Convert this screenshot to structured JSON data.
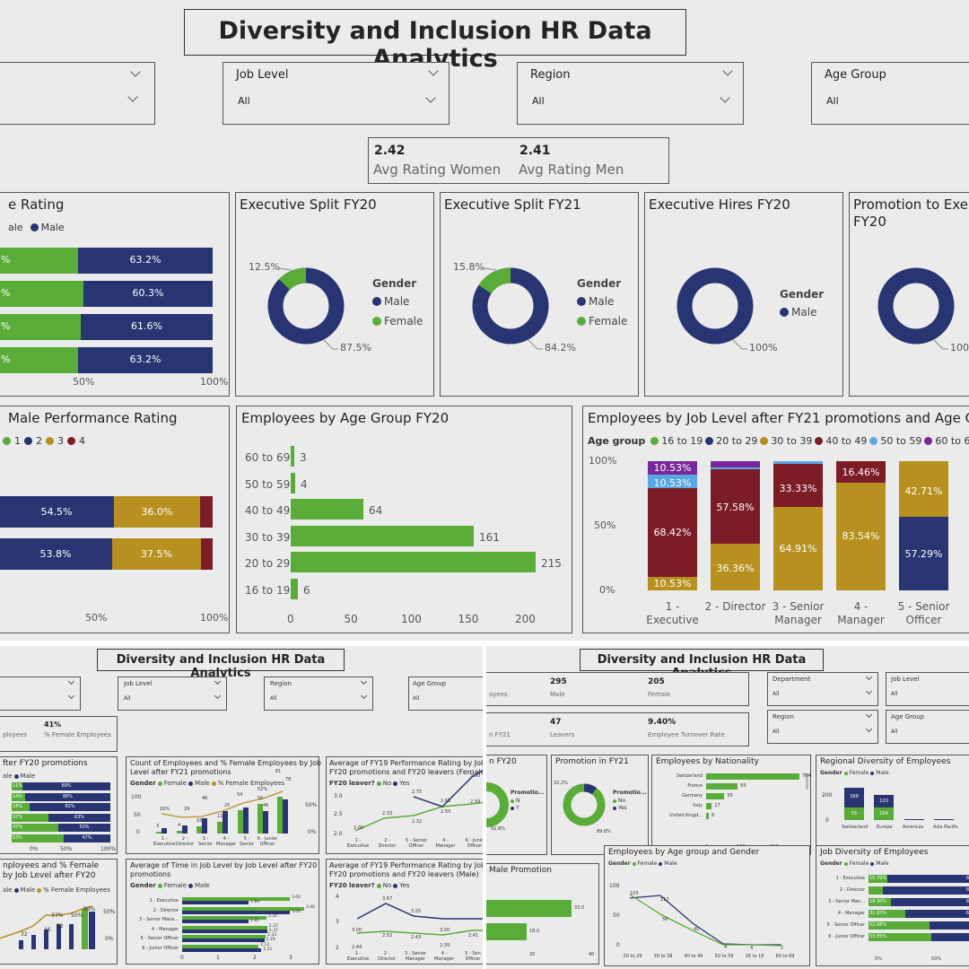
{
  "colors": {
    "green": "#5aac39",
    "navy": "#283572",
    "gold": "#b8901f",
    "maroon": "#7b1c27",
    "lightblue": "#5aa7e3",
    "purple": "#7a279a",
    "bg": "#ebebeb"
  },
  "top": {
    "title": "Diversity and Inclusion HR Data Analytics",
    "slicers": [
      {
        "label": "",
        "value": ""
      },
      {
        "label": "Job Level",
        "value": "All"
      },
      {
        "label": "Region",
        "value": "All"
      },
      {
        "label": "Age Group",
        "value": "All"
      }
    ],
    "kpi": {
      "women_value": "2.42",
      "women_label": "Avg Rating Women",
      "men_value": "2.41",
      "men_label": "Avg Rating Men"
    },
    "rating_title": "e Rating",
    "rating_legend": [
      "ale",
      "Male"
    ],
    "rating_rows": [
      {
        "g": "%",
        "m": "63.2%",
        "gf": 0.368
      },
      {
        "g": "%",
        "m": "60.3%",
        "gf": 0.397
      },
      {
        "g": "%",
        "m": "61.6%",
        "gf": 0.384
      },
      {
        "g": "%",
        "m": "63.2%",
        "gf": 0.368
      }
    ],
    "rating_axis": [
      "50%",
      "100%"
    ],
    "donuts": [
      {
        "title": "Executive Split FY20",
        "small": "12.5%",
        "big": "87.5%",
        "female": 0.125,
        "legend_title": "Gender",
        "legend": [
          "Male",
          "Female"
        ]
      },
      {
        "title": "Executive Split FY21",
        "small": "15.8%",
        "big": "84.2%",
        "female": 0.158,
        "legend_title": "Gender",
        "legend": [
          "Male",
          "Female"
        ]
      },
      {
        "title": "Executive Hires FY20",
        "small": "",
        "big": "100%",
        "female": 0,
        "legend_title": "Gender",
        "legend": [
          "Male"
        ]
      },
      {
        "title": "Promotion to Exe",
        "title2": "FY20",
        "small": "",
        "big": "100%",
        "female": 0,
        "legend_title": "",
        "legend": []
      }
    ],
    "perf_title": "Male Performance Rating",
    "perf_legend": [
      "1",
      "2",
      "3",
      "4"
    ],
    "perf_rows": [
      {
        "v2": "54.5%",
        "v3": "36.0%"
      },
      {
        "v2": "53.8%",
        "v3": "37.5%"
      }
    ],
    "perf_axis": [
      "50%",
      "100%"
    ],
    "age_title": "Employees by Age Group FY20",
    "joblvl_title": "Employees by Job Level after FY21 promotions and Age G",
    "joblvl_legend_title": "Age group",
    "joblvl_legend": [
      "16 to 19",
      "20 to 29",
      "30 to 39",
      "40 to 49",
      "50 to 59",
      "60 to 69"
    ],
    "joblvl_yaxis": [
      "100%",
      "50%",
      "0%"
    ],
    "joblvl_cats": [
      [
        "1 -",
        "Executive"
      ],
      [
        "2 - Director",
        ""
      ],
      [
        "3 - Senior",
        "Manager"
      ],
      [
        "4 -",
        "Manager"
      ],
      [
        "5 - Senior",
        "Officer"
      ]
    ]
  },
  "chart_data": [
    {
      "type": "bar",
      "title": "Employees by Age Group FY20",
      "categories": [
        "60 to 69",
        "50 to 59",
        "40 to 49",
        "30 to 39",
        "20 to 29",
        "16 to 19"
      ],
      "values": [
        3,
        4,
        64,
        161,
        215,
        6
      ],
      "xlim": [
        0,
        215
      ],
      "xticks": [
        "0",
        "50",
        "100",
        "150",
        "200"
      ]
    },
    {
      "type": "bar",
      "title": "Employees by Job Level after FY21 promotions and Age G",
      "categories": [
        "1 - Executive",
        "2 - Director",
        "3 - Senior Manager",
        "4 - Manager",
        "5 - Senior Officer"
      ],
      "series": [
        {
          "name": "16 to 19",
          "values": [
            0,
            0,
            0,
            0,
            0
          ]
        },
        {
          "name": "20 to 29",
          "values": [
            0,
            0,
            0,
            0,
            57.29
          ]
        },
        {
          "name": "30 to 39",
          "values": [
            10.53,
            36.36,
            64.91,
            83.54,
            42.71
          ]
        },
        {
          "name": "40 to 49",
          "values": [
            68.42,
            57.58,
            33.33,
            16.46,
            0
          ]
        },
        {
          "name": "50 to 59",
          "values": [
            10.53,
            1.5,
            1.76,
            0,
            0
          ]
        },
        {
          "name": "60 to 69",
          "values": [
            10.53,
            4.56,
            0,
            0,
            0
          ]
        }
      ],
      "labels": [
        [
          "10.53%",
          "68.42%",
          "10.53%",
          "10.53%"
        ],
        [
          "36.36%",
          "57.58%"
        ],
        [
          "64.91%",
          "33.33%"
        ],
        [
          "83.54%",
          "16.46%"
        ],
        [
          "57.29%",
          "42.71%"
        ]
      ],
      "ylim": [
        0,
        100
      ]
    }
  ],
  "bl": {
    "title": "Diversity and Inclusion HR Data Analytics",
    "slicers": [
      {
        "label": "",
        "value": ""
      },
      {
        "label": "Job Level",
        "value": "All"
      },
      {
        "label": "Region",
        "value": "All"
      },
      {
        "label": "Age Group",
        "value": "All"
      }
    ],
    "card_value": "41%",
    "card_left": "ployees",
    "card_label": "% Female Employees",
    "card2_title": "fter FY20 promotions",
    "card2_legend": [
      "ale",
      "Male"
    ],
    "card2_rows": [
      [
        "11%",
        "89%"
      ],
      [
        "14%",
        "86%"
      ],
      [
        "18%",
        "82%"
      ],
      [
        "37%",
        "63%"
      ],
      [
        "47%",
        "53%"
      ],
      [
        "53%",
        "47%"
      ]
    ],
    "card2_axis": [
      "0%",
      "50%",
      "100%"
    ],
    "card3_title": "nployees and % Female",
    "card3_title2": "by Job Level after FY20",
    "card3_legend": [
      "ale",
      "Male",
      "% Female Employees"
    ],
    "card3_vals": [
      "32",
      "46",
      "52",
      "37%",
      "50%",
      "59%"
    ],
    "card4_title": "Count of Employees and % Female Employees by Job",
    "card4_title2": "Level after FY21 promotions",
    "card4_legend_title": "Gender",
    "card4_legend": [
      "Female",
      "Male",
      "% Female Employees"
    ],
    "card4_labels": [
      "3",
      "4",
      "16",
      "29",
      "11",
      "46",
      "25",
      "54",
      "50",
      "46",
      "81",
      "78",
      "16%",
      "52%",
      "38%"
    ],
    "card4_cats": [
      "1 -",
      "2 -",
      "3 -",
      "4 -",
      "5 -",
      "6 - Junior"
    ],
    "card4_cats2": [
      "Executive",
      "Director",
      "Senior",
      "Manager",
      "Senior",
      "Officer"
    ],
    "card4_y": [
      "100",
      "50",
      "0"
    ],
    "card4_y2": [
      "50%",
      "0%"
    ],
    "card5_title": "Average of FY19 Performance Rating by Job Le",
    "card5_title2": "FY20 promotions and FY20 leavers (Female)",
    "card5_legend_title": "FY20 leaver?",
    "card5_legend": [
      "No",
      "Yes"
    ],
    "card5_labels": [
      "2.75",
      "2.65",
      "2.50",
      "2.33",
      "2.32",
      "2.00",
      "3.00",
      "2.59"
    ],
    "card5_y": [
      "3.0",
      "2.5",
      "2.0"
    ],
    "card5_cats": [
      "1 -",
      "2 -",
      "5 - Senior",
      "4 -",
      "6 - Junio"
    ],
    "card5_cats2": [
      "Executive",
      "Director",
      "Officer",
      "Manager",
      "Officer"
    ],
    "card6_title": "Average of Time in Job Level by Job Level after FY20",
    "card6_title2": "promotions",
    "card6_legend_title": "Gender",
    "card6_legend": [
      "Female",
      "Male"
    ],
    "card6_rows": [
      {
        "c": "1 - Executive",
        "f": "3.00",
        "m": "1.86"
      },
      {
        "c": "2 - Director",
        "f": "3.40",
        "m": "3.00"
      },
      {
        "c": "3 - Senior Mana...",
        "f": "2.35",
        "m": "1.85"
      },
      {
        "c": "4 - Manager",
        "f": "2.37",
        "m": "2.37"
      },
      {
        "c": "5 - Senior Officer",
        "f": "2.33",
        "m": "2.29"
      },
      {
        "c": "6 - Junior Officer",
        "f": "2.13",
        "m": "2.21"
      }
    ],
    "card6_axis": [
      "0",
      "1",
      "2",
      "3"
    ],
    "card7_title": "Average of FY19 Performance Rating by Job Level after",
    "card7_title2": "FY20 promotions and FY20 leavers (Male)",
    "card7_legend_title": "FY20 leaver?",
    "card7_legend": [
      "No",
      "Yes"
    ],
    "card7_labels": [
      "3.67",
      "3.25",
      "3.00",
      "3.00",
      "2.52",
      "2.43",
      "2.41",
      "2.44",
      "2.39"
    ],
    "card7_y": [
      "4",
      "3",
      "2"
    ],
    "card7_cats": [
      "1 -",
      "2 -",
      "3 - Senior",
      "4 -",
      "5 - Sen"
    ],
    "card7_cats2": [
      "Executive",
      "Director",
      "Manager",
      "Manager",
      "Officer"
    ]
  },
  "br": {
    "title": "Diversity and Inclusion HR Data Analytics",
    "k1_left": "oyees",
    "k1_v1": "295",
    "k1_l1": "Male",
    "k1_v2": "205",
    "k1_l2": "Female",
    "k2_left": "n FY21",
    "k2_v1": "47",
    "k2_l1": "Leavers",
    "k2_v2": "9.40%",
    "k2_l2": "Employee Turnover Rate",
    "slicers": [
      {
        "label": "Department",
        "value": "All"
      },
      {
        "label": "Job Level",
        "value": "All"
      },
      {
        "label": "Region",
        "value": "All"
      },
      {
        "label": "Age Group",
        "value": "All"
      }
    ],
    "d1_title": "n FY20",
    "d1_legend_title": "Promotio...",
    "d1_legend": [
      "N",
      "Y"
    ],
    "d1_big": "92.8%",
    "d2_title": "Promotion in FY21",
    "d2_small": "10.2%",
    "d2_big": "89.8%",
    "d2_legend_title": "Promotio...",
    "d2_legend": [
      "No",
      "Yes"
    ],
    "nat_title": "Employees by Nationality",
    "nat_rows": [
      {
        "c": "Switzerland",
        "v": "764"
      },
      {
        "c": "France",
        "v": "95"
      },
      {
        "c": "Germany",
        "v": "55"
      },
      {
        "c": "Italy",
        "v": "17"
      },
      {
        "c": "United Kingd...",
        "v": "8"
      }
    ],
    "nat_axis": [
      "0",
      "100",
      "200"
    ],
    "reg_title": "Regional Diversity of Employees",
    "reg_legend_title": "Gender",
    "reg_legend": [
      "Female",
      "Male"
    ],
    "reg_y": [
      "200",
      "0"
    ],
    "reg_labels": [
      "169",
      "120",
      "55",
      "104"
    ],
    "reg_cats": [
      "Switzerland",
      "Europe",
      "Americas",
      "Asia Pacific"
    ],
    "mp_title": "Male Promotion",
    "mp_vals": [
      "33.0",
      "18.0"
    ],
    "mp_axis": [
      "20",
      "40"
    ],
    "ag_title": "Employees by Age group and Gender",
    "ag_legend_title": "Gender",
    "ag_legend": [
      "Female",
      "Male"
    ],
    "ag_labels": [
      "103",
      "117",
      "58",
      "40",
      "4",
      "4",
      "2"
    ],
    "ag_y": [
      "100",
      "50",
      "0"
    ],
    "ag_cats": [
      "20 to 29",
      "30 to 39",
      "40 to 49",
      "50 to 59",
      "16 to 19",
      "60 to 69"
    ],
    "jd_title": "Job Diversity of Employees",
    "jd_legend_title": "Gender",
    "jd_legend": [
      "Female",
      "Male"
    ],
    "jd_rows": [
      {
        "c": "1 - Executive",
        "f": "15.79%",
        "m": "84.21%"
      },
      {
        "c": "2 - Director",
        "f": "",
        "m": "87.88%"
      },
      {
        "c": "3 - Senior Man...",
        "f": "19.30%",
        "m": "80.70%"
      },
      {
        "c": "4 - Manager",
        "f": "31.65%",
        "m": "68.35%"
      },
      {
        "c": "5 - Senior Officer",
        "f": "52.08%",
        "m": "47.9"
      },
      {
        "c": "6 - Junior Officer",
        "f": "53.85%",
        "m": "46."
      }
    ],
    "jd_axis": [
      "0%",
      "50%"
    ]
  }
}
